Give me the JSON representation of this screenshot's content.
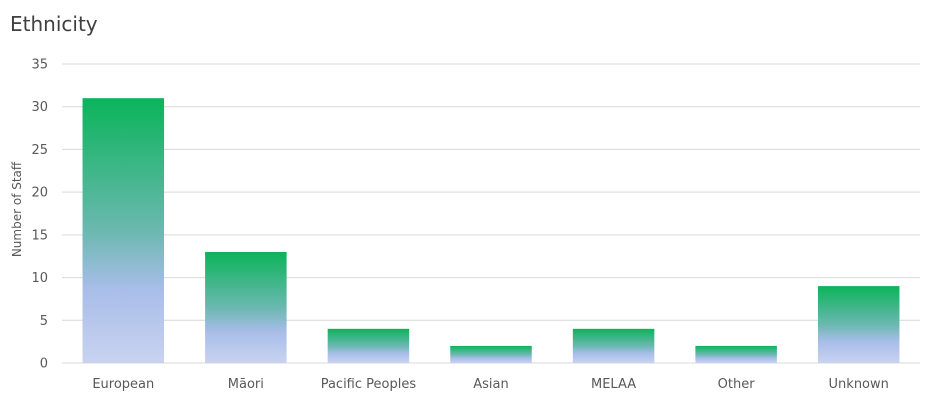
{
  "chart_data": {
    "type": "bar",
    "title": "Ethnicity",
    "xlabel": "",
    "ylabel": "Number of Staff",
    "categories": [
      "European",
      "Māori",
      "Pacific Peoples",
      "Asian",
      "MELAA",
      "Other",
      "Unknown"
    ],
    "values": [
      31,
      13,
      4,
      2,
      4,
      2,
      9
    ],
    "ylim": [
      0,
      35
    ],
    "yticks": [
      0,
      5,
      10,
      15,
      20,
      25,
      30,
      35
    ],
    "grid": true,
    "legend": "none",
    "colors": {
      "bar_top": "#0bb45a",
      "bar_mid": "#6bb8b0",
      "bar_bottom": "#c9d3f0",
      "grid": "#d9d9d9"
    }
  }
}
